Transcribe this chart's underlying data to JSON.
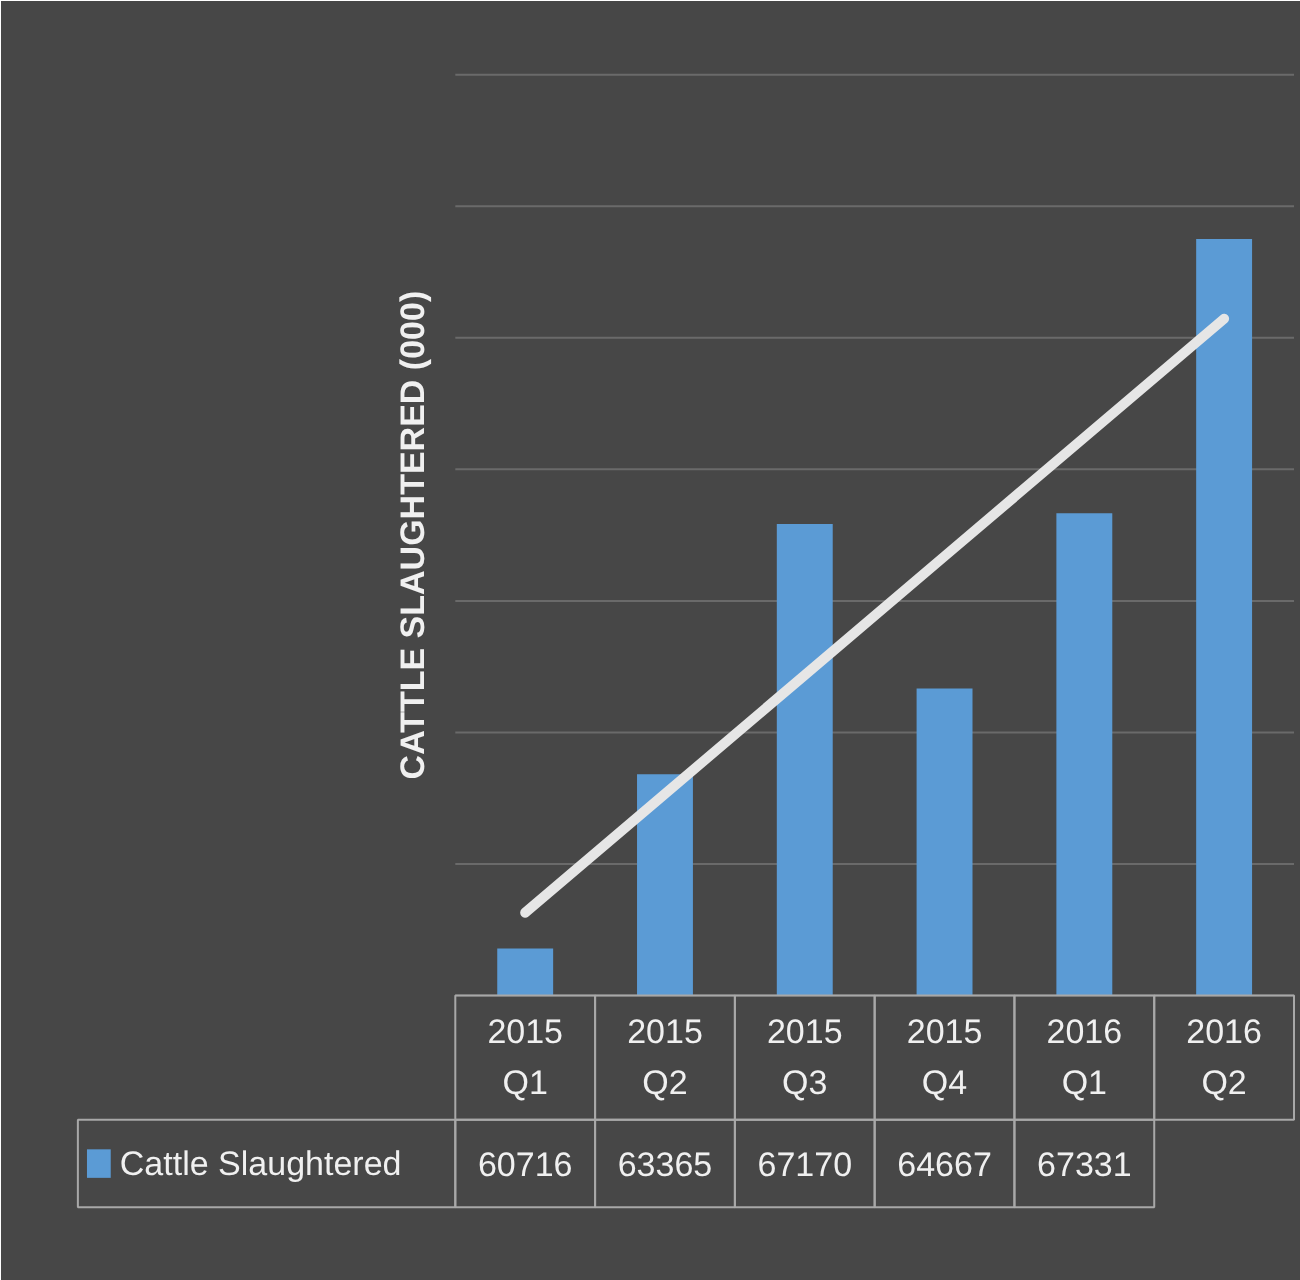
{
  "chart_data": {
    "type": "bar",
    "ylabel": "CATTLE SLAUGHTERED (000)",
    "categories": [
      "2015 Q1",
      "2015 Q2",
      "2015 Q3",
      "2015 Q4",
      "2016 Q1",
      "2016 Q2"
    ],
    "ylim": [
      60000,
      74000
    ],
    "yticks": [
      {
        "value": 60000,
        "label": null
      },
      {
        "value": 62000,
        "label": null
      },
      {
        "value": 64000,
        "label": null
      },
      {
        "value": 66000,
        "label": null
      },
      {
        "value": 68000,
        "label": null
      },
      {
        "value": 70000,
        "label": null
      },
      {
        "value": 72000,
        "label": null
      },
      {
        "value": 74000,
        "label": null
      }
    ],
    "grid": "y",
    "legend": "bottom",
    "tick_labels": "x",
    "series": [
      {
        "name": "Cattle Slaughtered",
        "color": "#5b9bd5",
        "values": [
          60716,
          63365,
          67170,
          64667,
          67331,
          71500
        ],
        "value_labels": [
          "60716",
          "63365",
          "67170",
          "64667",
          "67331",
          null
        ]
      },
      {
        "type": "line",
        "color": "#e6e6e6",
        "line_style": "solid",
        "values": [
          61260,
          63066,
          64872,
          66678,
          68484,
          70290
        ]
      }
    ]
  }
}
